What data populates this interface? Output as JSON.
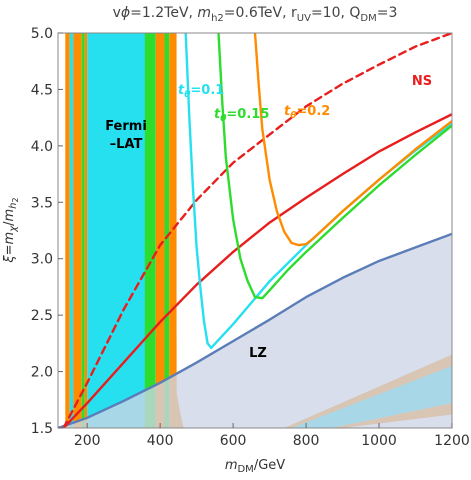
{
  "chart_data": {
    "type": "line",
    "title_html": "v<tspan font-style='italic'>ϕ</tspan>=1.2TeV, <tspan font-style='italic'>m</tspan><tspan font-size='10' dy='4'>h2</tspan><tspan dy='-4'>=0.6TeV, r</tspan><tspan font-size='10' dy='4'>UV</tspan><tspan dy='-4'>=10, Q</tspan><tspan font-size='10' dy='4'>DM</tspan><tspan dy='-4'>=3</tspan>",
    "title": "vϕ=1.2TeV, mh2=0.6TeV, rUV=10, QDM=3",
    "xlabel": "mDM/GeV",
    "ylabel": "ξ=mχ/mh2",
    "xlim": [
      120,
      1200
    ],
    "ylim": [
      1.5,
      5.0
    ],
    "xticks": [
      200,
      400,
      600,
      800,
      1000,
      1200
    ],
    "yticks": [
      1.5,
      2.0,
      2.5,
      3.0,
      3.5,
      4.0,
      4.5,
      5.0
    ],
    "annotations": {
      "fermi": [
        "Fermi",
        "–LAT"
      ],
      "lz": "LZ",
      "ns": "NS",
      "t01": "tθ=0.1",
      "t015": "tθ=0.15",
      "t02": "tθ=0.2"
    },
    "colors": {
      "cyan": "#26E0F0",
      "green": "#2DDC2D",
      "orange": "#FF8C00",
      "red": "#E81E1E",
      "lz_fill": "#CDD5E6",
      "lz_line": "#5B7DB8"
    },
    "regions": {
      "cyan_band": {
        "x": [
          200,
          360
        ]
      },
      "left_strips": [
        {
          "x": [
            140,
            152
          ],
          "color": "orange"
        },
        {
          "x": [
            152,
            162
          ],
          "color": "cyan"
        },
        {
          "x": [
            162,
            185
          ],
          "color": "orange"
        },
        {
          "x": [
            185,
            193
          ],
          "color": "green"
        },
        {
          "x": [
            193,
            200
          ],
          "color": "orange"
        }
      ],
      "right_strips": [
        {
          "x": [
            358,
            388
          ],
          "color": "green"
        },
        {
          "x": [
            388,
            412
          ],
          "color": "orange"
        },
        {
          "x": [
            412,
            425
          ],
          "color": "green"
        },
        {
          "x": [
            425,
            445
          ],
          "color": "orange"
        }
      ]
    },
    "series": [
      {
        "name": "LZ bound",
        "color": "lz_line",
        "x": [
          120,
          200,
          300,
          400,
          500,
          600,
          700,
          800,
          900,
          1000,
          1100,
          1200
        ],
        "y": [
          1.5,
          1.59,
          1.74,
          1.9,
          2.08,
          2.27,
          2.46,
          2.66,
          2.83,
          2.98,
          3.1,
          3.22
        ]
      },
      {
        "name": "NS (dashed)",
        "color": "red",
        "dashed": true,
        "x": [
          135,
          200,
          300,
          400,
          500,
          600,
          700,
          800,
          900,
          1000,
          1100,
          1200
        ],
        "y": [
          1.5,
          1.9,
          2.55,
          3.12,
          3.52,
          3.85,
          4.1,
          4.35,
          4.55,
          4.72,
          4.88,
          5.0
        ]
      },
      {
        "name": "red solid",
        "color": "red",
        "x": [
          135,
          200,
          300,
          400,
          500,
          600,
          700,
          800,
          900,
          1000,
          1100,
          1200
        ],
        "y": [
          1.5,
          1.72,
          2.08,
          2.44,
          2.77,
          3.06,
          3.32,
          3.54,
          3.75,
          3.95,
          4.12,
          4.28
        ]
      },
      {
        "name": "tθ=0.1",
        "color": "cyan",
        "x": [
          470,
          480,
          490,
          500,
          510,
          520,
          530,
          540,
          560,
          600,
          650,
          700,
          800,
          900,
          1000,
          1100,
          1200
        ],
        "y": [
          5.0,
          4.25,
          3.62,
          3.1,
          2.75,
          2.45,
          2.25,
          2.21,
          2.28,
          2.42,
          2.61,
          2.8,
          3.12,
          3.42,
          3.7,
          3.96,
          4.2
        ]
      },
      {
        "name": "tθ=0.15",
        "color": "green",
        "x": [
          560,
          570,
          580,
          600,
          620,
          640,
          660,
          680,
          700,
          750,
          800,
          900,
          1000,
          1100,
          1200
        ],
        "y": [
          5.0,
          4.4,
          3.9,
          3.35,
          3.0,
          2.8,
          2.66,
          2.65,
          2.72,
          2.9,
          3.06,
          3.36,
          3.65,
          3.92,
          4.18
        ]
      },
      {
        "name": "tθ=0.2",
        "color": "orange",
        "x": [
          660,
          670,
          680,
          700,
          720,
          740,
          760,
          780,
          800,
          820,
          850,
          900,
          1000,
          1100,
          1200
        ],
        "y": [
          5.0,
          4.55,
          4.15,
          3.7,
          3.42,
          3.24,
          3.14,
          3.12,
          3.13,
          3.18,
          3.27,
          3.42,
          3.7,
          3.97,
          4.22
        ]
      }
    ]
  }
}
